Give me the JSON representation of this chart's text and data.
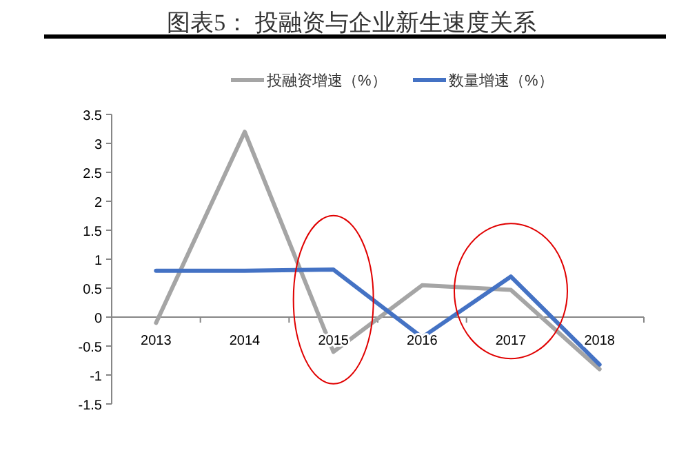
{
  "chart_data": {
    "type": "line",
    "title": "图表5：  投融资与企业新生速度关系",
    "categories": [
      "2013",
      "2014",
      "2015",
      "2016",
      "2017",
      "2018"
    ],
    "series": [
      {
        "name": "投融资增速（%）",
        "color": "#a5a5a5",
        "values": [
          -0.1,
          3.2,
          -0.6,
          0.55,
          0.47,
          -0.9
        ]
      },
      {
        "name": "数量增速（%）",
        "color": "#4472c4",
        "values": [
          0.8,
          0.8,
          0.82,
          -0.35,
          0.7,
          -0.82
        ]
      }
    ],
    "ylim": [
      -1.5,
      3.5
    ],
    "yticks": [
      {
        "value": -1.5,
        "label": "-1.5"
      },
      {
        "value": -1,
        "label": "-1"
      },
      {
        "value": -0.5,
        "label": "-0.5"
      },
      0,
      0.5,
      1,
      1.5,
      2,
      2.5,
      3,
      3.5
    ],
    "grid": false,
    "legend": "top",
    "marker": "none",
    "line_style": "solid"
  }
}
